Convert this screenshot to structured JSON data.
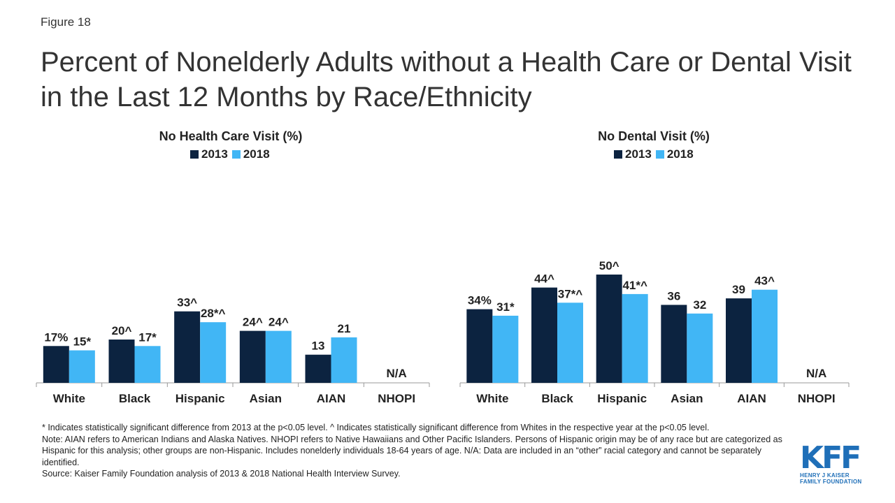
{
  "figure_label": "Figure 18",
  "title": "Percent of Nonelderly Adults without a Health Care or Dental Visit in the Last 12 Months by Race/Ethnicity",
  "colors": {
    "y2013": "#0c2340",
    "y2018": "#41b6f5",
    "axis": "#999999"
  },
  "charts": [
    {
      "title": "No Health Care Visit (%)",
      "legend": [
        "2013",
        "2018"
      ]
    },
    {
      "title": "No Dental Visit (%)",
      "legend": [
        "2013",
        "2018"
      ]
    }
  ],
  "chart_data": [
    {
      "type": "bar",
      "title": "No Health Care Visit (%)",
      "categories": [
        "White",
        "Black",
        "Hispanic",
        "Asian",
        "AIAN",
        "NHOPI"
      ],
      "series": [
        {
          "name": "2013",
          "values": [
            17,
            20,
            33,
            24,
            13,
            null
          ],
          "labels": [
            "17%",
            "20^",
            "33^",
            "24^",
            "13",
            ""
          ]
        },
        {
          "name": "2018",
          "values": [
            15,
            17,
            28,
            24,
            21,
            null
          ],
          "labels": [
            "15*",
            "17*",
            "28*^",
            "24^",
            "21",
            ""
          ]
        }
      ],
      "na_labels": [
        "",
        "",
        "",
        "",
        "",
        "N/A"
      ],
      "ylim": [
        0,
        60
      ]
    },
    {
      "type": "bar",
      "title": "No Dental Visit (%)",
      "categories": [
        "White",
        "Black",
        "Hispanic",
        "Asian",
        "AIAN",
        "NHOPI"
      ],
      "series": [
        {
          "name": "2013",
          "values": [
            34,
            44,
            50,
            36,
            39,
            null
          ],
          "labels": [
            "34%",
            "44^",
            "50^",
            "36",
            "39",
            ""
          ]
        },
        {
          "name": "2018",
          "values": [
            31,
            37,
            41,
            32,
            43,
            null
          ],
          "labels": [
            "31*",
            "37*^",
            "41*^",
            "32",
            "43^",
            ""
          ]
        }
      ],
      "na_labels": [
        "",
        "",
        "",
        "",
        "",
        "N/A"
      ],
      "ylim": [
        0,
        60
      ]
    }
  ],
  "notes": [
    "* Indicates statistically significant difference from 2013 at the p<0.05 level. ^ Indicates statistically significant difference from Whites in the respective year at the p<0.05 level.",
    "Note: AIAN refers to American Indians and Alaska Natives. NHOPI refers to Native Hawaiians and Other Pacific Islanders. Persons of Hispanic origin may be of any race but are categorized as Hispanic for this analysis; other groups are non-Hispanic. Includes nonelderly individuals 18-64 years of age. N/A: Data are included in an “other” racial category and cannot be separately identified.",
    "Source: Kaiser Family Foundation analysis of 2013 & 2018 National Health Interview Survey."
  ],
  "logo": {
    "mark": "KFF",
    "line1": "HENRY J KAISER",
    "line2": "FAMILY FOUNDATION"
  }
}
